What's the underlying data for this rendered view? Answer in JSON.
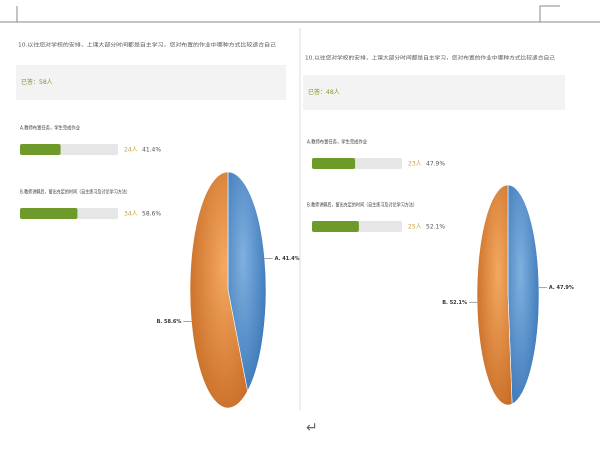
{
  "panels": [
    {
      "question": "10.以往您对学校的安排，上课大部分时间都是自主学习，您对布置的作业中哪种方式比较适合自己",
      "answered": "已答：58人",
      "options": [
        {
          "label": "A.教师布置任务，学生完成作业",
          "count": "24人",
          "percent": 41.4,
          "percent_label": "41.4%",
          "pie_label": "A. 41.4%"
        },
        {
          "label": "B.教师讲解后，留出充足的时间（自主练习及讨论学习方法）",
          "count": "34人",
          "percent": 58.6,
          "percent_label": "58.6%",
          "pie_label": "B. 58.6%"
        }
      ]
    },
    {
      "question": "10.以往您对学校的安排，上课大部分时间都是自主学习，您对布置的作业中哪种方式比较适合自己",
      "answered": "已答：48人",
      "options": [
        {
          "label": "A.教师布置任务，学生完成作业",
          "count": "23人",
          "percent": 47.9,
          "percent_label": "47.9%",
          "pie_label": "A. 47.9%"
        },
        {
          "label": "B.教师讲解后，留出充足的时间（自主练习及讨论学习方法）",
          "count": "25人",
          "percent": 52.1,
          "percent_label": "52.1%",
          "pie_label": "B. 52.1%"
        }
      ]
    }
  ]
}
